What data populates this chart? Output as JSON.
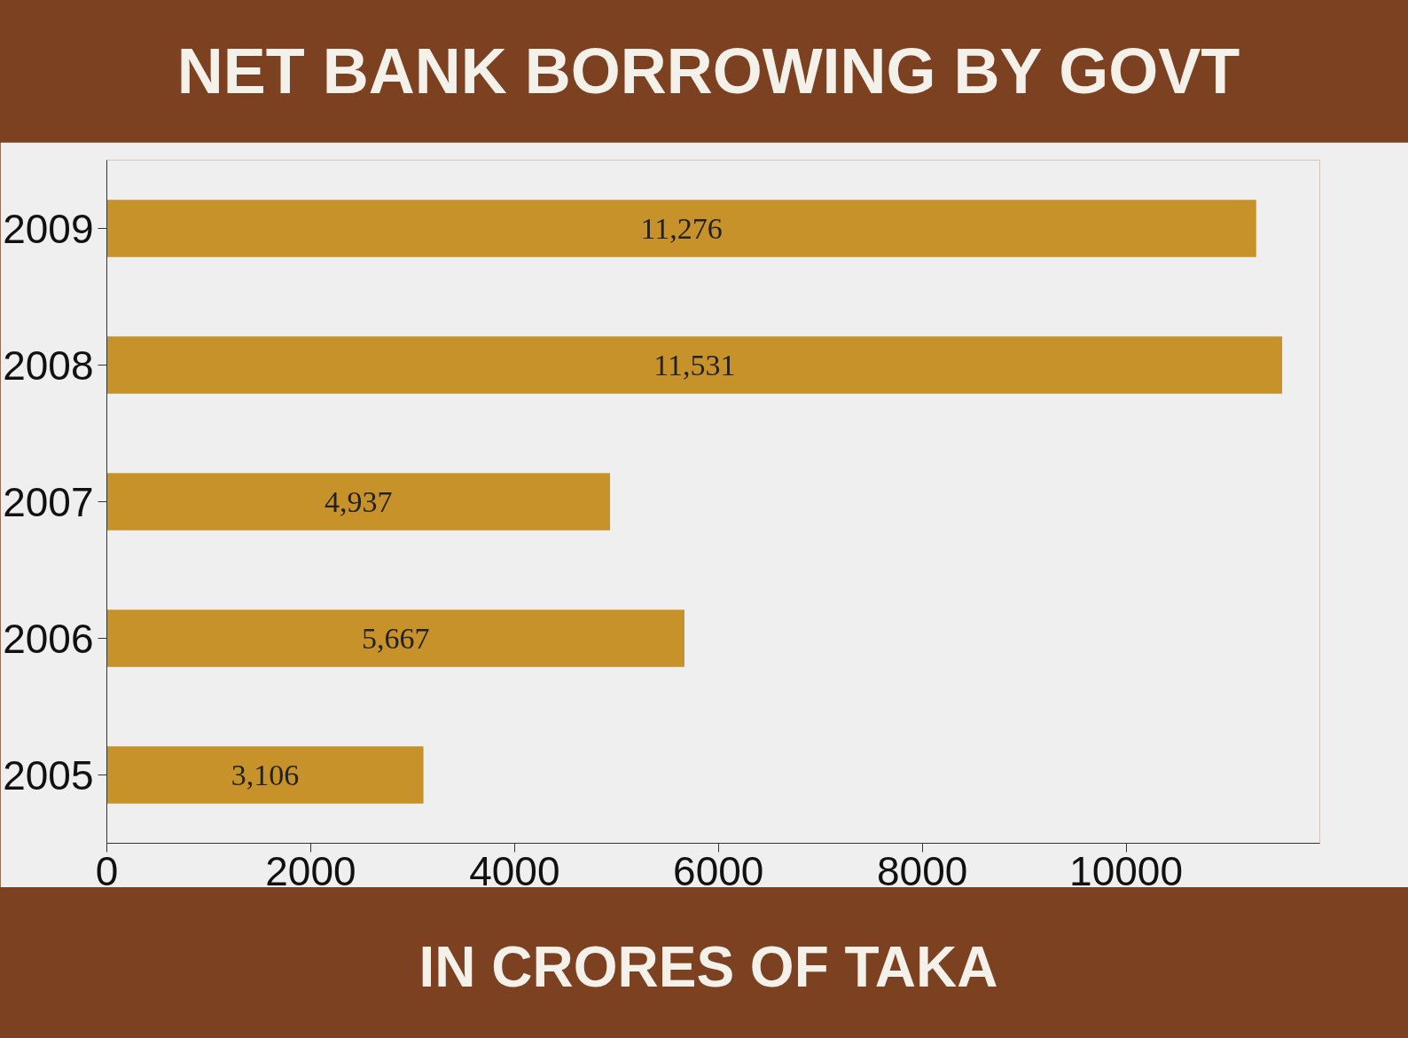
{
  "chart_data": {
    "type": "bar",
    "orientation": "horizontal",
    "title": "NET BANK BORROWING BY GOVT",
    "xlabel": "IN CRORES OF TAKA",
    "categories": [
      "2009",
      "2008",
      "2007",
      "2006",
      "2005"
    ],
    "values": [
      11276,
      11531,
      4937,
      5667,
      3106
    ],
    "value_labels": [
      "11,276",
      "11,531",
      "4,937",
      "5,667",
      "3,106"
    ],
    "color": "#c8922a",
    "xlim": [
      0,
      11900
    ],
    "xticks": [
      0,
      2000,
      4000,
      6000,
      8000,
      10000
    ],
    "grid": false
  }
}
